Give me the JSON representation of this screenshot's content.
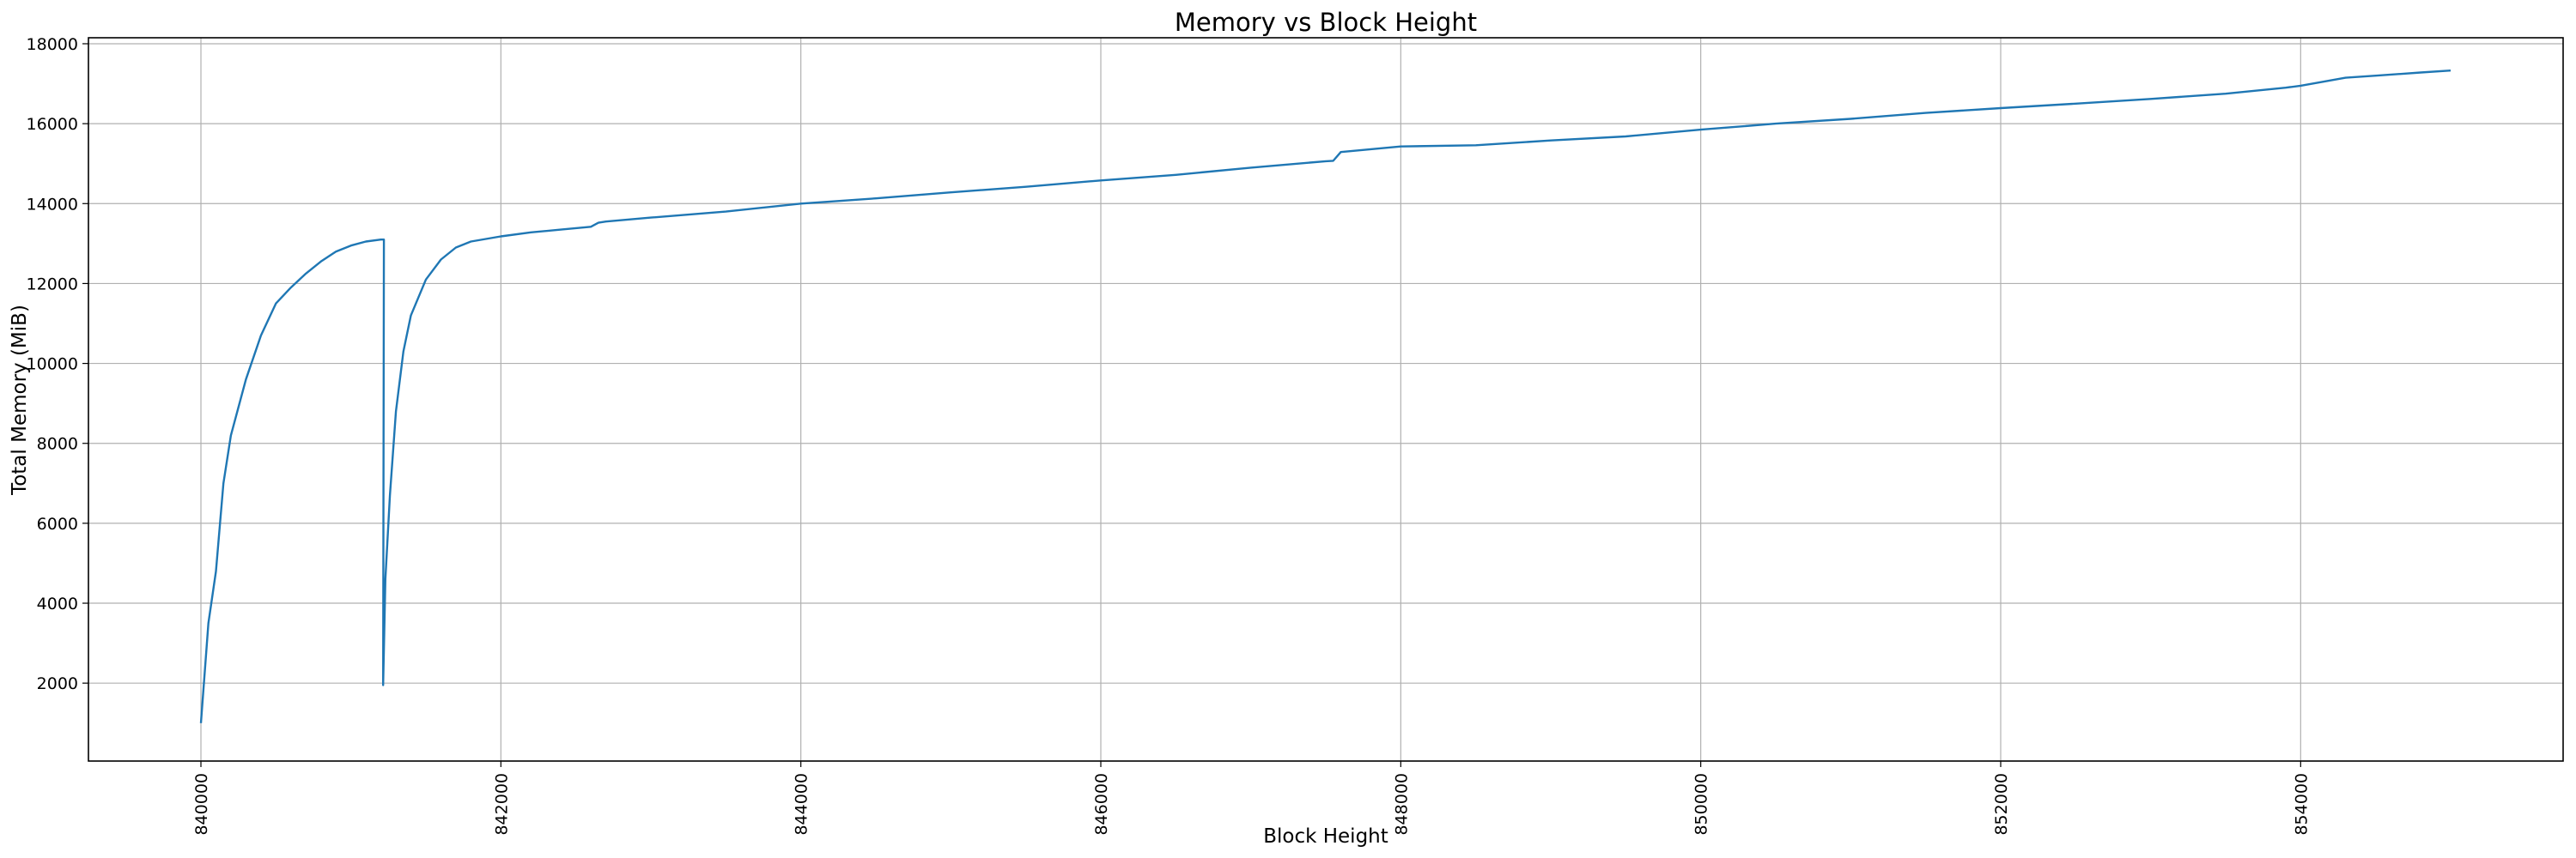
{
  "chart_data": {
    "type": "line",
    "title": "Memory vs Block Height",
    "xlabel": "Block Height",
    "ylabel": "Total Memory (MiB)",
    "xlim": [
      839250,
      855750
    ],
    "ylim": [
      50,
      18150
    ],
    "xticks": [
      840000,
      842000,
      844000,
      846000,
      848000,
      850000,
      852000,
      854000
    ],
    "yticks": [
      2000,
      4000,
      6000,
      8000,
      10000,
      12000,
      14000,
      16000,
      18000
    ],
    "grid": true,
    "legend": "none",
    "series_color": "#1f77b4",
    "series": [
      {
        "x": [
          840000,
          840050,
          840100,
          840150,
          840200,
          840300,
          840400,
          840500,
          840600,
          840700,
          840800,
          840900,
          841000,
          841100,
          841200,
          841220,
          841215,
          841230,
          841260,
          841300,
          841350,
          841400,
          841500,
          841600,
          841700,
          841800,
          842000,
          842200,
          842400,
          842600,
          842650,
          842700,
          843000,
          843500,
          844000,
          844500,
          845000,
          845500,
          846000,
          846500,
          847000,
          847500,
          847550,
          847600,
          848000,
          848500,
          849000,
          849500,
          850000,
          850500,
          851000,
          851500,
          852000,
          852500,
          853000,
          853500,
          853900,
          854000,
          854300,
          854500,
          854800,
          855000
        ],
        "y": [
          1000,
          3500,
          4800,
          7000,
          8200,
          9600,
          10700,
          11500,
          11900,
          12250,
          12550,
          12800,
          12950,
          13050,
          13100,
          13100,
          1950,
          4600,
          6700,
          8800,
          10300,
          11200,
          12100,
          12600,
          12900,
          13050,
          13180,
          13280,
          13350,
          13420,
          13520,
          13550,
          13650,
          13800,
          14000,
          14130,
          14280,
          14420,
          14580,
          14720,
          14900,
          15060,
          15070,
          15290,
          15430,
          15460,
          15580,
          15680,
          15850,
          16000,
          16120,
          16270,
          16390,
          16500,
          16620,
          16750,
          16900,
          16950,
          17150,
          17200,
          17280,
          17330
        ]
      }
    ]
  }
}
